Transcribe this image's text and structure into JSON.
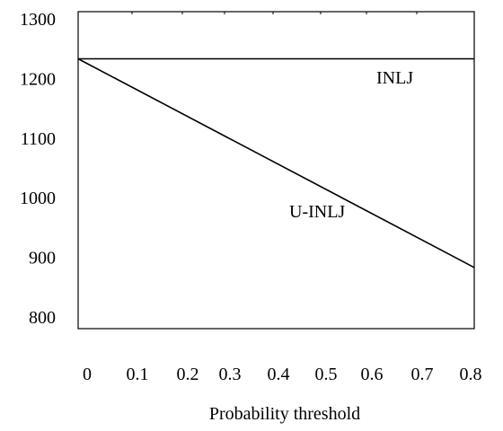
{
  "chart_data": {
    "type": "line",
    "xlabel": "Probability threshold",
    "ylabel": "",
    "xlim": [
      0,
      0.8
    ],
    "ylim": [
      800,
      1300
    ],
    "x_ticks": [
      "0",
      "0.1",
      "0.2",
      "0.3",
      "0.4",
      "0.5",
      "0.6",
      "0.7",
      "0.8"
    ],
    "y_ticks": [
      "800",
      "900",
      "1000",
      "1100",
      "1200",
      "1300"
    ],
    "grid": false,
    "legend": "none",
    "series": [
      {
        "name": "INLJ",
        "x": [
          0,
          0.8
        ],
        "y": [
          1233,
          1233
        ],
        "color": "#000000"
      },
      {
        "name": "U-INLJ",
        "x": [
          0,
          0.8
        ],
        "y": [
          1233,
          883
        ],
        "color": "#000000"
      }
    ]
  }
}
